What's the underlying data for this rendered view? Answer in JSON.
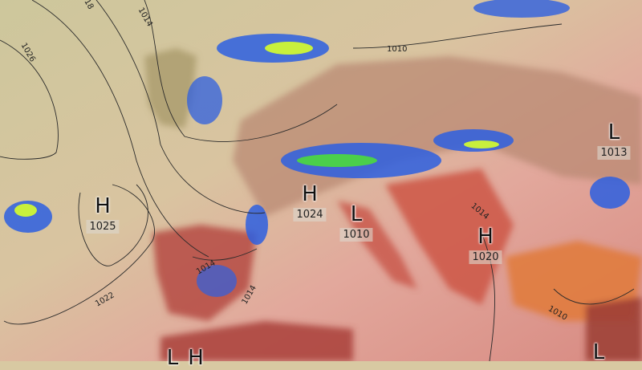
{
  "map": {
    "pressure_centers": [
      {
        "type": "H",
        "value": "1025"
      },
      {
        "type": "H",
        "value": "1024"
      },
      {
        "type": "L",
        "value": "1010"
      },
      {
        "type": "H",
        "value": "1020"
      },
      {
        "type": "L",
        "value": "1013"
      },
      {
        "type": "L",
        "value": ""
      },
      {
        "type": "L",
        "value": ""
      },
      {
        "type": "H",
        "value": ""
      }
    ],
    "isobar_labels": [
      "1026",
      "18",
      "1014",
      "1010",
      "1022",
      "1014",
      "1014",
      "1010",
      "1014"
    ],
    "colors": {
      "ocean_north": "#d6cba3",
      "ocean_south": "#e9b7ae",
      "land_hot": "#d9685a",
      "land_very_hot": "#b83a32",
      "anatolia": "#e8803c",
      "precip_light": "#2d5fe0",
      "precip_heavy": "#c8f03c",
      "isobar": "#2a2a2a"
    }
  }
}
